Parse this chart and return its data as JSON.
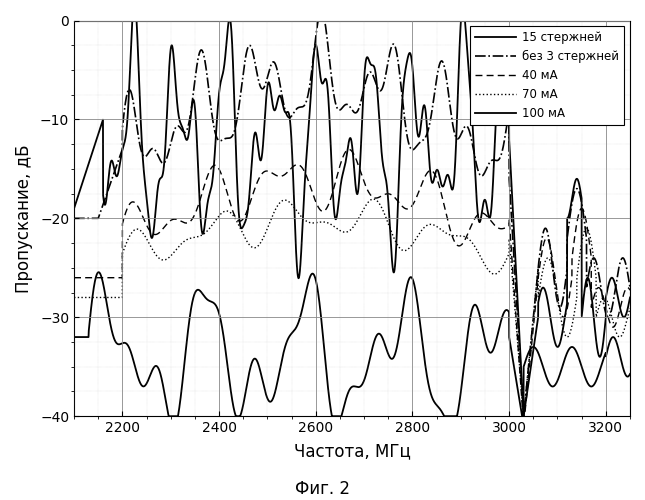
{
  "xlabel": "Частота, МГц",
  "ylabel": "Пропускание, дБ",
  "caption": "Фиг. 2",
  "xlim": [
    2100,
    3250
  ],
  "ylim": [
    -40,
    0
  ],
  "xticks": [
    2200,
    2400,
    2600,
    2800,
    3000,
    3200
  ],
  "yticks": [
    0,
    -10,
    -20,
    -30,
    -40
  ],
  "legend": [
    "15 стержней",
    "без 3 стержней",
    "40 мА",
    "70 мА",
    "100 мА"
  ]
}
